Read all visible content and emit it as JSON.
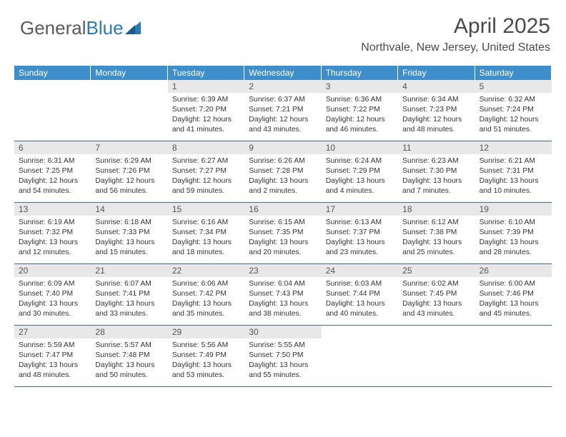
{
  "logo": {
    "a": "General",
    "b": "Blue"
  },
  "header": {
    "month": "April 2025",
    "location": "Northvale, New Jersey, United States"
  },
  "dayNames": [
    "Sunday",
    "Monday",
    "Tuesday",
    "Wednesday",
    "Thursday",
    "Friday",
    "Saturday"
  ],
  "style": {
    "header_bg": "#3f8ecc",
    "header_fg": "#ffffff",
    "daynum_bg": "#e8e8e8",
    "daynum_fg": "#555555",
    "cell_border": "#3f6a94",
    "body_fontsize": 10.3,
    "title_fontsize": 30,
    "location_fontsize": 16,
    "dayhead_fontsize": 12
  },
  "grid": {
    "leading_blanks": 2,
    "trailing_blanks": 3,
    "days": [
      {
        "n": "1",
        "sunrise": "6:39 AM",
        "sunset": "7:20 PM",
        "daylight": "12 hours and 41 minutes."
      },
      {
        "n": "2",
        "sunrise": "6:37 AM",
        "sunset": "7:21 PM",
        "daylight": "12 hours and 43 minutes."
      },
      {
        "n": "3",
        "sunrise": "6:36 AM",
        "sunset": "7:22 PM",
        "daylight": "12 hours and 46 minutes."
      },
      {
        "n": "4",
        "sunrise": "6:34 AM",
        "sunset": "7:23 PM",
        "daylight": "12 hours and 48 minutes."
      },
      {
        "n": "5",
        "sunrise": "6:32 AM",
        "sunset": "7:24 PM",
        "daylight": "12 hours and 51 minutes."
      },
      {
        "n": "6",
        "sunrise": "6:31 AM",
        "sunset": "7:25 PM",
        "daylight": "12 hours and 54 minutes."
      },
      {
        "n": "7",
        "sunrise": "6:29 AM",
        "sunset": "7:26 PM",
        "daylight": "12 hours and 56 minutes."
      },
      {
        "n": "8",
        "sunrise": "6:27 AM",
        "sunset": "7:27 PM",
        "daylight": "12 hours and 59 minutes."
      },
      {
        "n": "9",
        "sunrise": "6:26 AM",
        "sunset": "7:28 PM",
        "daylight": "13 hours and 2 minutes."
      },
      {
        "n": "10",
        "sunrise": "6:24 AM",
        "sunset": "7:29 PM",
        "daylight": "13 hours and 4 minutes."
      },
      {
        "n": "11",
        "sunrise": "6:23 AM",
        "sunset": "7:30 PM",
        "daylight": "13 hours and 7 minutes."
      },
      {
        "n": "12",
        "sunrise": "6:21 AM",
        "sunset": "7:31 PM",
        "daylight": "13 hours and 10 minutes."
      },
      {
        "n": "13",
        "sunrise": "6:19 AM",
        "sunset": "7:32 PM",
        "daylight": "13 hours and 12 minutes."
      },
      {
        "n": "14",
        "sunrise": "6:18 AM",
        "sunset": "7:33 PM",
        "daylight": "13 hours and 15 minutes."
      },
      {
        "n": "15",
        "sunrise": "6:16 AM",
        "sunset": "7:34 PM",
        "daylight": "13 hours and 18 minutes."
      },
      {
        "n": "16",
        "sunrise": "6:15 AM",
        "sunset": "7:35 PM",
        "daylight": "13 hours and 20 minutes."
      },
      {
        "n": "17",
        "sunrise": "6:13 AM",
        "sunset": "7:37 PM",
        "daylight": "13 hours and 23 minutes."
      },
      {
        "n": "18",
        "sunrise": "6:12 AM",
        "sunset": "7:38 PM",
        "daylight": "13 hours and 25 minutes."
      },
      {
        "n": "19",
        "sunrise": "6:10 AM",
        "sunset": "7:39 PM",
        "daylight": "13 hours and 28 minutes."
      },
      {
        "n": "20",
        "sunrise": "6:09 AM",
        "sunset": "7:40 PM",
        "daylight": "13 hours and 30 minutes."
      },
      {
        "n": "21",
        "sunrise": "6:07 AM",
        "sunset": "7:41 PM",
        "daylight": "13 hours and 33 minutes."
      },
      {
        "n": "22",
        "sunrise": "6:06 AM",
        "sunset": "7:42 PM",
        "daylight": "13 hours and 35 minutes."
      },
      {
        "n": "23",
        "sunrise": "6:04 AM",
        "sunset": "7:43 PM",
        "daylight": "13 hours and 38 minutes."
      },
      {
        "n": "24",
        "sunrise": "6:03 AM",
        "sunset": "7:44 PM",
        "daylight": "13 hours and 40 minutes."
      },
      {
        "n": "25",
        "sunrise": "6:02 AM",
        "sunset": "7:45 PM",
        "daylight": "13 hours and 43 minutes."
      },
      {
        "n": "26",
        "sunrise": "6:00 AM",
        "sunset": "7:46 PM",
        "daylight": "13 hours and 45 minutes."
      },
      {
        "n": "27",
        "sunrise": "5:59 AM",
        "sunset": "7:47 PM",
        "daylight": "13 hours and 48 minutes."
      },
      {
        "n": "28",
        "sunrise": "5:57 AM",
        "sunset": "7:48 PM",
        "daylight": "13 hours and 50 minutes."
      },
      {
        "n": "29",
        "sunrise": "5:56 AM",
        "sunset": "7:49 PM",
        "daylight": "13 hours and 53 minutes."
      },
      {
        "n": "30",
        "sunrise": "5:55 AM",
        "sunset": "7:50 PM",
        "daylight": "13 hours and 55 minutes."
      }
    ]
  },
  "labels": {
    "sunrise": "Sunrise:",
    "sunset": "Sunset:",
    "daylight": "Daylight:"
  }
}
